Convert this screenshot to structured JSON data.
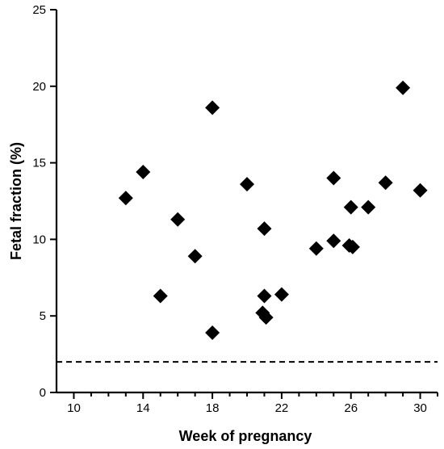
{
  "chart_data": {
    "type": "scatter",
    "title": "",
    "xlabel": "Week of pregnancy",
    "ylabel": "Fetal fraction (%)",
    "xlim": [
      9,
      31
    ],
    "ylim": [
      0,
      25
    ],
    "x_ticks": [
      10,
      14,
      18,
      22,
      26,
      30
    ],
    "x_minor_ticks": [
      11,
      12,
      13,
      15,
      16,
      17,
      19,
      20,
      21,
      23,
      24,
      25,
      27,
      28,
      29,
      31
    ],
    "y_ticks": [
      0,
      5,
      10,
      15,
      20,
      25
    ],
    "marker": "diamond",
    "marker_color": "#000000",
    "grid": false,
    "reference_line": {
      "y": 2,
      "style": "dashed"
    },
    "points": [
      {
        "x": 13,
        "y": 12.7
      },
      {
        "x": 14,
        "y": 14.4
      },
      {
        "x": 15,
        "y": 6.3
      },
      {
        "x": 16,
        "y": 11.3
      },
      {
        "x": 17,
        "y": 8.9
      },
      {
        "x": 18,
        "y": 18.6
      },
      {
        "x": 18,
        "y": 3.9
      },
      {
        "x": 20,
        "y": 13.6
      },
      {
        "x": 21,
        "y": 10.7
      },
      {
        "x": 21,
        "y": 6.3
      },
      {
        "x": 20.9,
        "y": 5.2
      },
      {
        "x": 21.1,
        "y": 4.9
      },
      {
        "x": 22,
        "y": 6.4
      },
      {
        "x": 24,
        "y": 9.4
      },
      {
        "x": 25,
        "y": 14.0
      },
      {
        "x": 25,
        "y": 9.9
      },
      {
        "x": 25.9,
        "y": 9.6
      },
      {
        "x": 26.1,
        "y": 9.5
      },
      {
        "x": 26,
        "y": 12.1
      },
      {
        "x": 27,
        "y": 12.1
      },
      {
        "x": 28,
        "y": 13.7
      },
      {
        "x": 29,
        "y": 19.9
      },
      {
        "x": 30,
        "y": 13.2
      }
    ]
  }
}
